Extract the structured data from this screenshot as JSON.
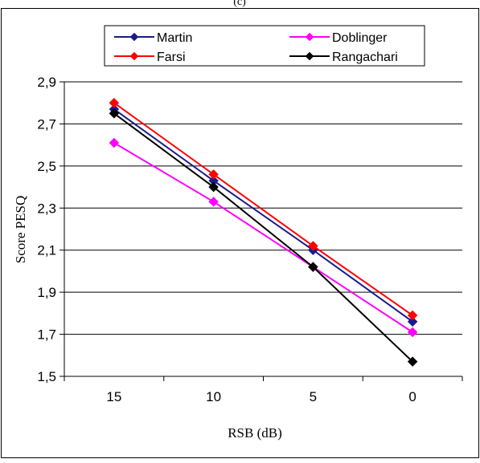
{
  "top_label": "(c)",
  "chart_data": {
    "type": "line",
    "categories": [
      "15",
      "10",
      "5",
      "0"
    ],
    "xlabel": "RSB (dB)",
    "ylabel": "Score PESQ",
    "ylim": [
      1.5,
      2.9
    ],
    "ytick_labels": [
      "1,5",
      "1,7",
      "1,9",
      "2,1",
      "2,3",
      "2,5",
      "2,7",
      "2,9"
    ],
    "ytick_values": [
      1.5,
      1.7,
      1.9,
      2.1,
      2.3,
      2.5,
      2.7,
      2.9
    ],
    "grid": "horizontal",
    "legend_position": "top",
    "series": [
      {
        "name": "Martin",
        "color": "#1a1a8c",
        "values": [
          2.77,
          2.43,
          2.1,
          1.76
        ]
      },
      {
        "name": "Doblinger",
        "color": "#ff00ff",
        "values": [
          2.61,
          2.33,
          2.02,
          1.71
        ]
      },
      {
        "name": "Farsi",
        "color": "#ff0000",
        "values": [
          2.8,
          2.46,
          2.12,
          1.79
        ]
      },
      {
        "name": "Rangachari",
        "color": "#000000",
        "values": [
          2.75,
          2.4,
          2.02,
          1.57
        ]
      }
    ]
  }
}
